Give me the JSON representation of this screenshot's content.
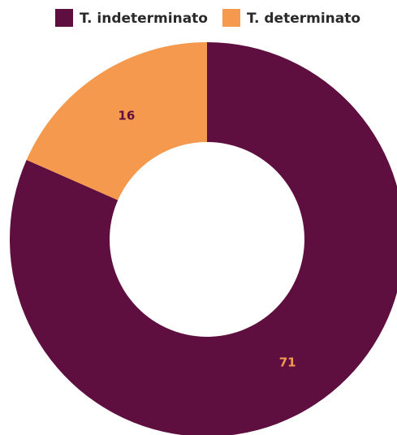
{
  "chart_data": {
    "type": "pie",
    "donut": true,
    "categories": [
      "T. indeterminato",
      "T. determinato"
    ],
    "values": [
      71,
      16
    ],
    "colors": [
      "#5e0f3f",
      "#f5994e"
    ],
    "label_colors": [
      "#f5994e",
      "#5e0f3f"
    ],
    "legend": "top"
  }
}
